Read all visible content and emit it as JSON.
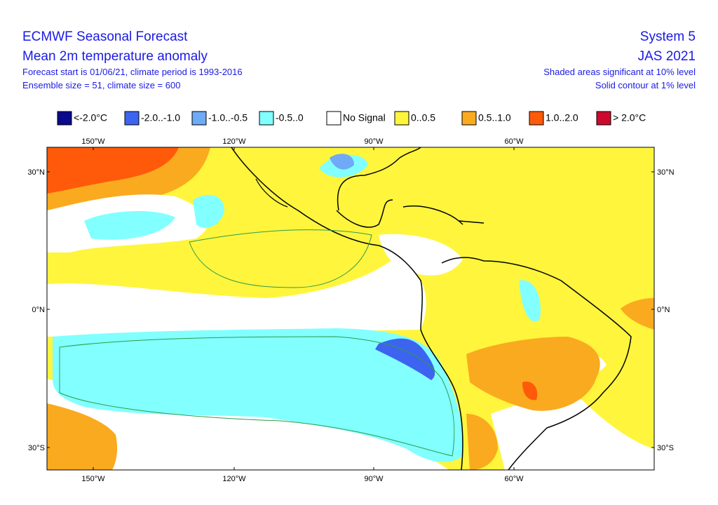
{
  "header": {
    "title": "ECMWF Seasonal Forecast",
    "subtitle": "Mean 2m temperature anomaly",
    "line1": "Forecast start is 01/06/21, climate period is 1993-2016",
    "line2": "Ensemble size = 51, climate size = 600",
    "system": "System 5",
    "season": "JAS 2021",
    "note1": "Shaded areas significant at 10% level",
    "note2": "Solid contour at 1% level"
  },
  "legend": [
    {
      "label": "<-2.0°C",
      "color": "#0a0a8c"
    },
    {
      "label": "-2.0..-1.0",
      "color": "#3c64f0"
    },
    {
      "label": "-1.0..-0.5",
      "color": "#6eaaf5"
    },
    {
      "label": "-0.5..0",
      "color": "#82ffff"
    },
    {
      "label": "No Signal",
      "color": "#ffffff"
    },
    {
      "label": "0..0.5",
      "color": "#fff53c"
    },
    {
      "label": "0.5..1.0",
      "color": "#faaa1e"
    },
    {
      "label": "1.0..2.0",
      "color": "#ff5a0a"
    },
    {
      "label": "> 2.0°C",
      "color": "#cd0a2d"
    }
  ],
  "axes": {
    "lon": [
      "150°W",
      "120°W",
      "90°W",
      "60°W"
    ],
    "lat": [
      "30°N",
      "0°N",
      "30°S"
    ]
  }
}
